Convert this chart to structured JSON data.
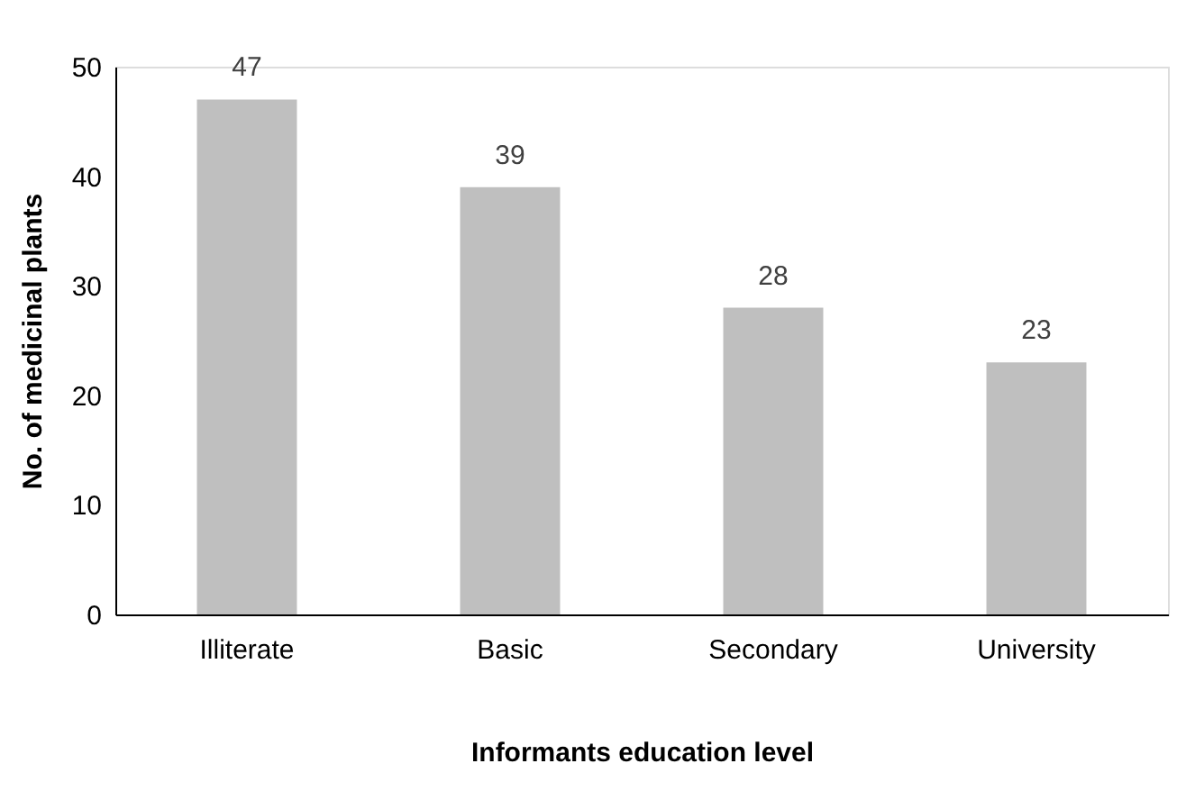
{
  "chart_data": {
    "type": "bar",
    "xlabel": "Informants education level",
    "ylabel": "No. of medicinal plants",
    "categories": [
      "Illiterate",
      "Basic",
      "Secondary",
      "University"
    ],
    "values": [
      47,
      39,
      28,
      23
    ],
    "color": "#bfbfbf",
    "ylim": [
      0,
      50
    ],
    "yticks": [
      0,
      10,
      20,
      30,
      40,
      50
    ],
    "grid": false,
    "data_labels": true
  }
}
